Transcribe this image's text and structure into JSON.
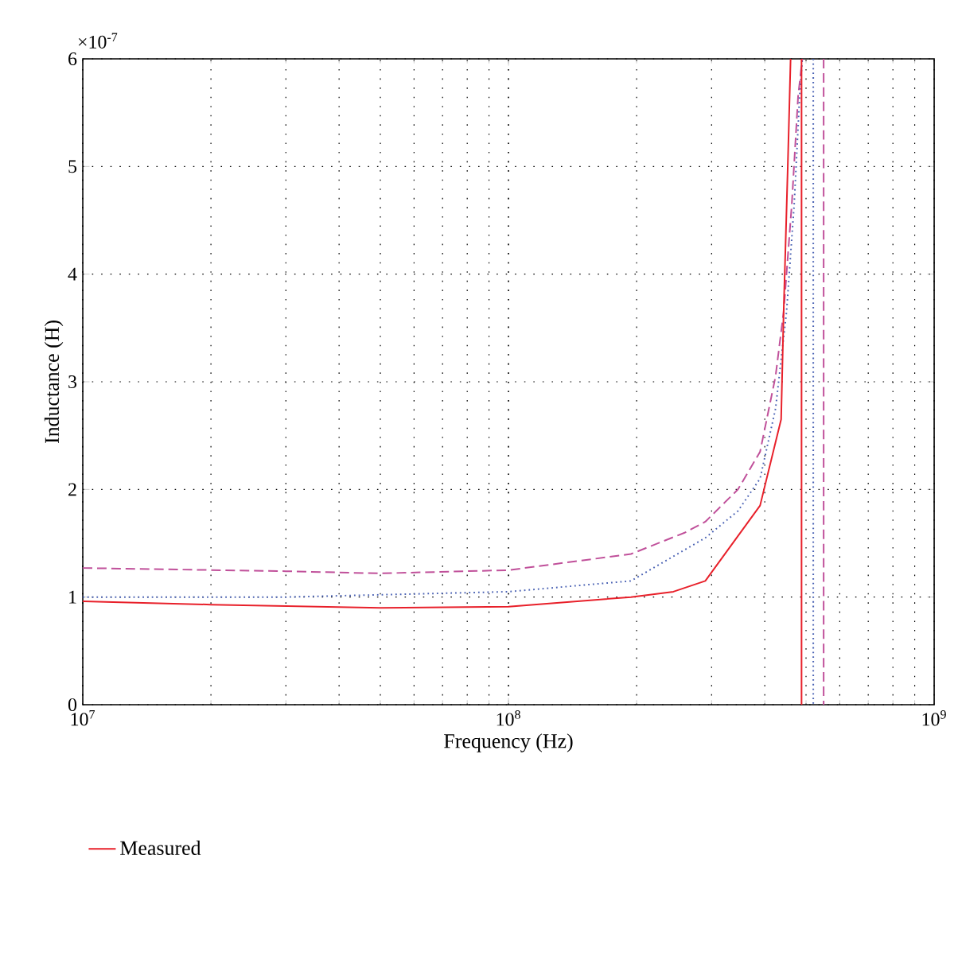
{
  "chart_data": {
    "type": "line",
    "xlabel": "Frequency (Hz)",
    "ylabel": "Inductance (H)",
    "annotations": [
      "×10$^{-7}$"
    ],
    "log": "x",
    "xlim": [
      10000000,
      1000000000
    ],
    "ylim": [
      0,
      6
    ],
    "xticks": [
      {
        "value": 10000000,
        "label": "10$^{7}$"
      },
      {
        "value": 100000000,
        "label": "10$^{8}$"
      },
      {
        "value": 1000000000,
        "label": "10$^{9}$"
      }
    ],
    "yticks": [
      0,
      1,
      2,
      3,
      4,
      5,
      6
    ],
    "grid": true,
    "legend": "bottom",
    "series": [
      {
        "color": "#c0509a",
        "line_style": "dashed",
        "x": [
          10000000,
          30000000,
          50000000,
          100000000,
          194000000,
          260000000,
          290000000,
          346000000,
          390000000,
          424000000,
          443000000,
          463000000,
          479000000,
          490000000,
          520000000,
          550000000,
          550000000
        ],
        "values": [
          1.27,
          1.24,
          1.22,
          1.25,
          1.4,
          1.6,
          1.7,
          2.0,
          2.35,
          3.05,
          3.65,
          4.65,
          5.65,
          6,
          null,
          6,
          0
        ]
      },
      {
        "color": "#4a62b4",
        "line_style": "dotted",
        "x": [
          10000000,
          30000000,
          100000000,
          194000000,
          290000000,
          346000000,
          390000000,
          424000000,
          450000000,
          469000000,
          483000000,
          490000000,
          505000000,
          520000000,
          520000000
        ],
        "values": [
          1.0,
          1.0,
          1.05,
          1.15,
          1.55,
          1.8,
          2.1,
          2.75,
          3.65,
          4.65,
          5.65,
          6,
          null,
          6,
          0
        ]
      },
      {
        "name": "Measured",
        "color": "#e8202a",
        "line_style": "solid",
        "x": [
          10000000,
          20000000,
          50000000,
          100000000,
          194000000,
          244000000,
          290000000,
          390000000,
          437000000,
          443000000,
          453000000,
          460000000,
          475000000,
          488000000,
          488000000
        ],
        "values": [
          0.96,
          0.93,
          0.9,
          0.91,
          1.0,
          1.05,
          1.15,
          1.85,
          2.65,
          3.65,
          5.0,
          6,
          null,
          6,
          0
        ]
      }
    ]
  }
}
